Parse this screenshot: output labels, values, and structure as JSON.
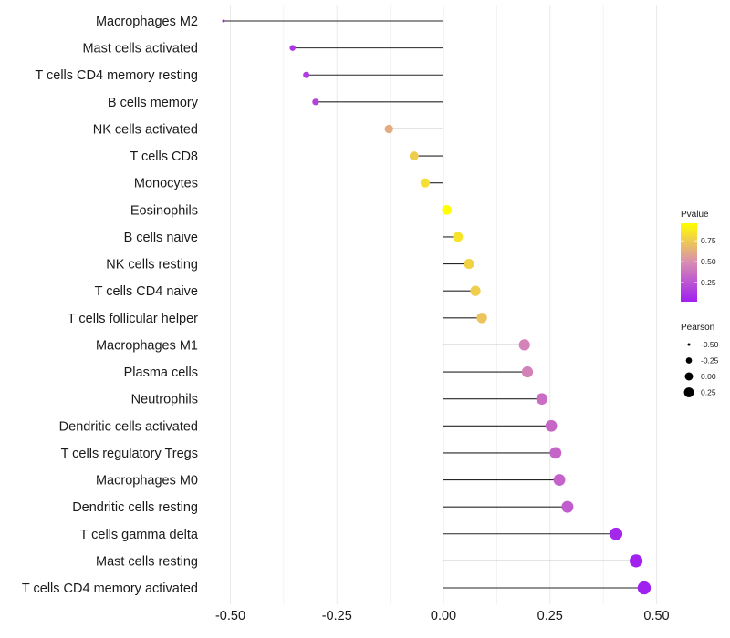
{
  "chart_data": {
    "type": "lollipop",
    "title": "",
    "xlabel": "",
    "ylabel": "",
    "xlim": [
      -0.53,
      0.54
    ],
    "xticks": [
      -0.5,
      -0.25,
      0.0,
      0.25,
      0.5
    ],
    "xtick_labels": [
      "-0.50",
      "-0.25",
      "0.00",
      "0.25",
      "0.50"
    ],
    "grid": true,
    "categories": [
      "Macrophages M2",
      "Mast cells activated",
      "T cells CD4 memory resting",
      "B cells memory",
      "NK cells activated",
      "T cells CD8",
      "Monocytes",
      "Eosinophils",
      "B cells naive",
      "NK cells resting",
      "T cells CD4 naive",
      "T cells follicular helper",
      "Macrophages M1",
      "Plasma cells",
      "Neutrophils",
      "Dendritic cells activated",
      "T cells regulatory  Tregs ",
      "Macrophages M0",
      "Dendritic cells resting",
      "T cells gamma delta",
      "Mast cells resting",
      "T cells CD4 memory activated"
    ],
    "pearson": [
      -0.516,
      -0.354,
      -0.322,
      -0.3,
      -0.128,
      -0.069,
      -0.043,
      0.008,
      0.034,
      0.06,
      0.075,
      0.09,
      0.19,
      0.197,
      0.231,
      0.253,
      0.263,
      0.272,
      0.291,
      0.405,
      0.452,
      0.471
    ],
    "pvalue": [
      0.02,
      0.12,
      0.15,
      0.17,
      0.62,
      0.75,
      0.83,
      0.96,
      0.85,
      0.78,
      0.76,
      0.72,
      0.45,
      0.44,
      0.36,
      0.33,
      0.32,
      0.31,
      0.28,
      0.05,
      0.03,
      0.02
    ],
    "legends": {
      "color": {
        "title": "Pvalue",
        "ticks": [
          0.25,
          0.5,
          0.75
        ],
        "tick_labels": [
          "0.25",
          "0.50",
          "0.75"
        ],
        "range": [
          0.02,
          0.96
        ],
        "low_color": "#A020F0",
        "mid_color": "#D98CB3",
        "high_color": "#FFFF00",
        "placement": "right"
      },
      "size": {
        "title": "Pearson",
        "values": [
          -0.5,
          -0.25,
          0.0,
          0.25
        ],
        "labels": [
          "-0.50",
          "-0.25",
          "0.00",
          "0.25"
        ],
        "placement": "right"
      }
    },
    "segment_color": "#000000",
    "gridline_color": "#EBEBEB"
  }
}
